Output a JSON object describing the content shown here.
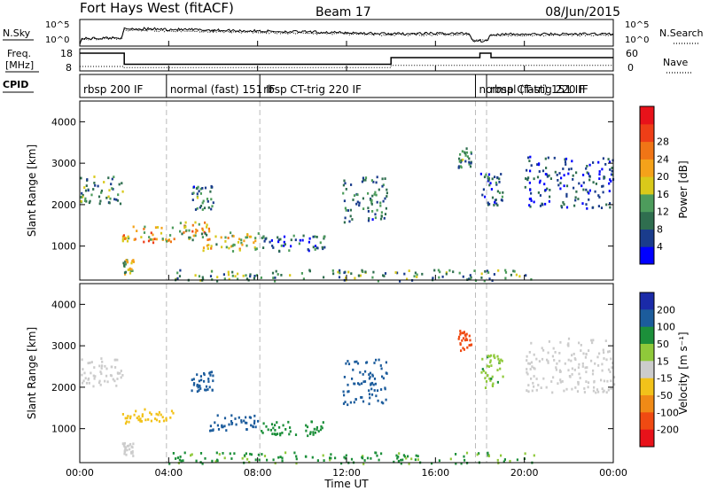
{
  "header": {
    "title": "Fort Hays West (fitACF)",
    "beam": "Beam 17",
    "date": "08/Jun/2015"
  },
  "labels": {
    "nsky": "N.Sky",
    "nsearch": "N.Search",
    "freq_line1": "Freq.",
    "freq_line2": "[MHz]",
    "nave": "Nave",
    "cpid": "CPID",
    "xlabel": "Time UT",
    "ylabel": "Slant Range [km]",
    "power_label": "Power [dB]",
    "velocity_label": "Velocity [m s⁻¹]"
  },
  "noise_axis": {
    "left_ticks": [
      "10^5",
      "10^0"
    ],
    "right_ticks": [
      "10^5",
      "10^0"
    ]
  },
  "freq_axis": {
    "left_ticks": [
      "18",
      "8"
    ],
    "right_ticks": [
      "60",
      "0"
    ]
  },
  "cpid_segments": [
    {
      "label": "rbsp 200 IF",
      "start": 0,
      "end": 3.9
    },
    {
      "label": "normal (fast) 151 IF",
      "start": 3.9,
      "end": 8.1
    },
    {
      "label": "rbsp CT-trig 220 IF",
      "start": 8.1,
      "end": 17.8
    },
    {
      "label": "normal (fast) 151 IF",
      "start": 17.8,
      "end": 18.3
    },
    {
      "label": "rbsp CT-trig 220 IF",
      "start": 18.3,
      "end": 24
    }
  ],
  "chart_data": [
    {
      "type": "line",
      "name_label": "noise",
      "x": [
        0,
        0.1,
        1.9,
        2.0,
        6,
        12,
        14,
        17.5,
        17.7,
        18.3,
        18.5,
        24
      ],
      "series": [
        {
          "name": "N.Sky",
          "values": [
            0.5,
            1.4,
            1.6,
            3.3,
            3.0,
            2.5,
            2.3,
            2.4,
            1.0,
            1.0,
            2.2,
            2.3
          ]
        },
        {
          "name": "N.Search",
          "values": [
            0.5,
            1.3,
            1.5,
            3.0,
            2.7,
            2.3,
            2.1,
            2.2,
            1.2,
            1.2,
            2.0,
            2.1
          ]
        }
      ],
      "xlim": [
        0,
        24
      ]
    },
    {
      "type": "line",
      "name_label": "frequency",
      "x": [
        0,
        2.0,
        2.0,
        14.0,
        14.0,
        18.0,
        18.0,
        18.5,
        18.5,
        24
      ],
      "series": [
        {
          "name": "Freq.",
          "values": [
            16,
            16,
            11,
            11,
            14,
            14,
            16,
            16,
            14,
            14
          ]
        },
        {
          "name": "Nave",
          "values": [
            10,
            10,
            9.5,
            9.5,
            10.5,
            10.5,
            10.5,
            10.5,
            10.5,
            10.5
          ]
        }
      ],
      "ylim": [
        8,
        18
      ],
      "xlim": [
        0,
        24
      ]
    },
    {
      "type": "heatmap",
      "name_label": "power",
      "xlabel": "Time UT",
      "ylabel": "Slant Range [km]",
      "xlim": [
        0,
        24
      ],
      "ylim": [
        180,
        4500
      ],
      "x_ticks": [
        "00:00",
        "04:00",
        "08:00",
        "12:00",
        "16:00",
        "20:00",
        "00:00"
      ],
      "y_ticks": [
        1000,
        2000,
        3000,
        4000
      ],
      "colorbar": {
        "label": "Power [dB]",
        "ticks": [
          4,
          8,
          12,
          16,
          20,
          24,
          28
        ],
        "colors": [
          "#0000ff",
          "#1a3c8c",
          "#2f6e4f",
          "#4d9c5c",
          "#d9c91a",
          "#f4a21a",
          "#f07516",
          "#ee3e17",
          "#e8121a"
        ]
      },
      "regions": [
        {
          "t0": 0.0,
          "t1": 1.9,
          "r0": 2050,
          "r1": 2750,
          "value": 12
        },
        {
          "t0": 1.9,
          "t1": 4.2,
          "r0": 1100,
          "r1": 1500,
          "value": 22
        },
        {
          "t0": 4.2,
          "t1": 5.8,
          "r0": 1150,
          "r1": 1600,
          "value": 20
        },
        {
          "t0": 5.5,
          "t1": 8.0,
          "r0": 900,
          "r1": 1350,
          "value": 18
        },
        {
          "t0": 8.0,
          "t1": 11.0,
          "r0": 900,
          "r1": 1300,
          "value": 8
        },
        {
          "t0": 1.9,
          "t1": 2.4,
          "r0": 350,
          "r1": 700,
          "value": 16
        },
        {
          "t0": 5.0,
          "t1": 6.0,
          "r0": 1900,
          "r1": 2500,
          "value": 10
        },
        {
          "t0": 11.8,
          "t1": 13.8,
          "r0": 1600,
          "r1": 2700,
          "value": 10
        },
        {
          "t0": 3.9,
          "t1": 20.5,
          "r0": 180,
          "r1": 450,
          "value": 12
        },
        {
          "t0": 17.0,
          "t1": 17.6,
          "r0": 2900,
          "r1": 3400,
          "value": 10
        },
        {
          "t0": 20.0,
          "t1": 24.0,
          "r0": 1900,
          "r1": 3200,
          "value": 6
        },
        {
          "t0": 18.0,
          "t1": 19.0,
          "r0": 2000,
          "r1": 2800,
          "value": 7
        }
      ]
    },
    {
      "type": "heatmap",
      "name_label": "velocity",
      "xlabel": "Time UT",
      "ylabel": "Slant Range [km]",
      "xlim": [
        0,
        24
      ],
      "ylim": [
        180,
        4500
      ],
      "x_ticks": [
        "00:00",
        "04:00",
        "08:00",
        "12:00",
        "16:00",
        "20:00",
        "00:00"
      ],
      "y_ticks": [
        1000,
        2000,
        3000,
        4000
      ],
      "colorbar": {
        "label": "Velocity [m s⁻¹]",
        "ticks": [
          200,
          100,
          50,
          15,
          -15,
          -50,
          -100,
          -200
        ],
        "colors": [
          "#1a2aa8",
          "#1c5c9c",
          "#1c8f3a",
          "#8fc93a",
          "#cccccc",
          "#f2c21a",
          "#f08a16",
          "#f04a12",
          "#e8121a"
        ]
      },
      "regions": [
        {
          "t0": 0.0,
          "t1": 1.9,
          "r0": 2050,
          "r1": 2750,
          "value": 0
        },
        {
          "t0": 1.9,
          "t1": 4.2,
          "r0": 1150,
          "r1": 1500,
          "value": -30
        },
        {
          "t0": 1.9,
          "t1": 2.4,
          "r0": 350,
          "r1": 700,
          "value": 0
        },
        {
          "t0": 5.0,
          "t1": 6.0,
          "r0": 1900,
          "r1": 2500,
          "value": 150
        },
        {
          "t0": 5.8,
          "t1": 8.0,
          "r0": 950,
          "r1": 1350,
          "value": 150
        },
        {
          "t0": 8.0,
          "t1": 11.0,
          "r0": 850,
          "r1": 1200,
          "value": 80
        },
        {
          "t0": 11.8,
          "t1": 13.8,
          "r0": 1600,
          "r1": 2700,
          "value": 150
        },
        {
          "t0": 3.9,
          "t1": 20.5,
          "r0": 180,
          "r1": 450,
          "value": 60
        },
        {
          "t0": 17.0,
          "t1": 17.6,
          "r0": 2900,
          "r1": 3400,
          "value": -150
        },
        {
          "t0": 18.0,
          "t1": 19.0,
          "r0": 2000,
          "r1": 2800,
          "value": 40
        },
        {
          "t0": 20.0,
          "t1": 24.0,
          "r0": 1900,
          "r1": 3200,
          "value": 0
        }
      ]
    }
  ]
}
